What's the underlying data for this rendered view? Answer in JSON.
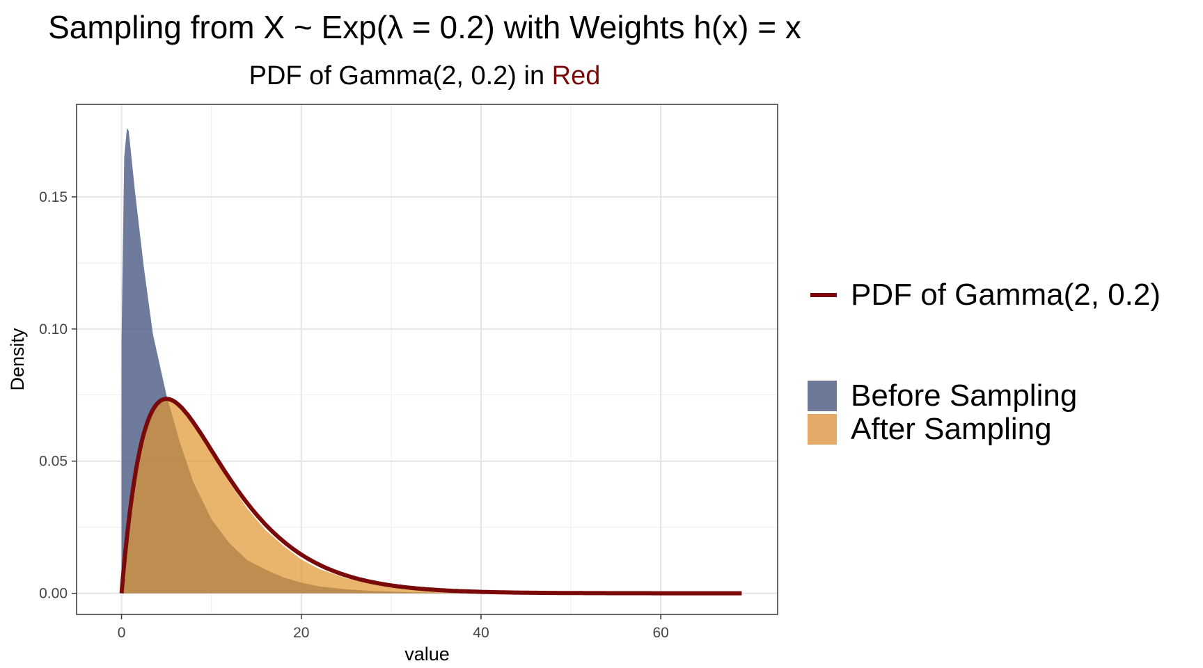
{
  "title": "Sampling from X ~ Exp(λ = 0.2) with Weights h(x) = x",
  "subtitle": {
    "text": "PDF of Gamma(2, 0.2) in ",
    "highlight": "Red"
  },
  "chart_data": {
    "type": "area",
    "xlabel": "value",
    "ylabel": "Density",
    "xlim": [
      -5,
      73
    ],
    "ylim": [
      -0.008,
      0.185
    ],
    "xticks": [
      0,
      20,
      40,
      60
    ],
    "yticks": [
      0.0,
      0.05,
      0.1,
      0.15
    ],
    "xtick_labels": [
      "0",
      "20",
      "40",
      "60"
    ],
    "ytick_labels": [
      "0.00",
      "0.05",
      "0.10",
      "0.15"
    ],
    "grid": true,
    "legend_placement": "right",
    "series": [
      {
        "name": "Before Sampling",
        "kind": "density-area",
        "color": "#4a5a85",
        "x": [
          0,
          0.3,
          0.6,
          0.8,
          1.5,
          2.5,
          3.5,
          5,
          6.5,
          8,
          10,
          12,
          14,
          16,
          18,
          20,
          22,
          25,
          28,
          32,
          36,
          40,
          45,
          50
        ],
        "y": [
          0.095,
          0.165,
          0.176,
          0.175,
          0.152,
          0.123,
          0.098,
          0.075,
          0.057,
          0.042,
          0.028,
          0.019,
          0.0125,
          0.009,
          0.006,
          0.004,
          0.0026,
          0.0015,
          0.0009,
          0.0004,
          0.0002,
          0.0001,
          3e-05,
          0
        ]
      },
      {
        "name": "After Sampling",
        "kind": "density-area",
        "color": "#e0952f",
        "x": [
          0,
          0.5,
          1,
          1.5,
          2,
          3,
          4,
          5,
          6,
          7,
          8,
          10,
          12,
          14,
          16,
          18,
          20,
          22,
          25,
          28,
          30,
          35,
          40,
          45,
          50
        ],
        "y": [
          0,
          0.02,
          0.036,
          0.047,
          0.056,
          0.067,
          0.072,
          0.0735,
          0.0725,
          0.069,
          0.064,
          0.053,
          0.042,
          0.032,
          0.024,
          0.018,
          0.0128,
          0.0092,
          0.0057,
          0.0034,
          0.0024,
          0.001,
          0.0004,
          0.0001,
          0
        ]
      },
      {
        "name": "PDF of Gamma(2, 0.2)",
        "kind": "gamma-pdf",
        "color": "#7a0a0a",
        "shape": 2,
        "rate": 0.2,
        "x_range": [
          0,
          69
        ]
      }
    ]
  },
  "legend": {
    "line_label": "PDF of Gamma(2, 0.2)",
    "fill_items": [
      {
        "label": "Before Sampling",
        "color": "#6e7898"
      },
      {
        "label": "After Sampling",
        "color": "#e6aa68"
      }
    ]
  }
}
